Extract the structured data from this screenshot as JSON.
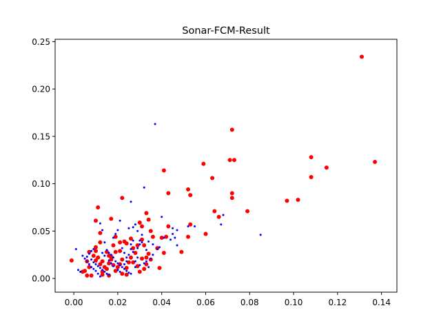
{
  "chart_data": {
    "type": "scatter",
    "title": "Sonar-FCM-Result",
    "xlabel": "",
    "ylabel": "",
    "xlim": [
      -0.0085,
      0.147
    ],
    "ylim": [
      -0.0145,
      0.2525
    ],
    "xticks": [
      0.0,
      0.02,
      0.04,
      0.06,
      0.08,
      0.1,
      0.12,
      0.14
    ],
    "xtick_labels": [
      "0.00",
      "0.02",
      "0.04",
      "0.06",
      "0.08",
      "0.10",
      "0.12",
      "0.14"
    ],
    "yticks": [
      0.0,
      0.05,
      0.1,
      0.15,
      0.2,
      0.25
    ],
    "ytick_labels": [
      "0.00",
      "0.05",
      "0.10",
      "0.15",
      "0.20",
      "0.25"
    ],
    "grid": false,
    "legend": "none",
    "series": [
      {
        "color": "#ff0000",
        "marker": "circle",
        "points": [
          [
            0.131,
            0.234
          ],
          [
            0.137,
            0.123
          ],
          [
            0.115,
            0.117
          ],
          [
            0.108,
            0.128
          ],
          [
            0.108,
            0.107
          ],
          [
            0.102,
            0.083
          ],
          [
            0.097,
            0.082
          ],
          [
            0.073,
            0.125
          ],
          [
            0.071,
            0.125
          ],
          [
            0.072,
            0.157
          ],
          [
            0.072,
            0.09
          ],
          [
            0.072,
            0.085
          ],
          [
            0.079,
            0.071
          ],
          [
            0.066,
            0.065
          ],
          [
            0.064,
            0.071
          ],
          [
            0.059,
            0.121
          ],
          [
            0.063,
            0.106
          ],
          [
            0.06,
            0.047
          ],
          [
            0.052,
            0.094
          ],
          [
            0.053,
            0.088
          ],
          [
            0.053,
            0.057
          ],
          [
            0.052,
            0.044
          ],
          [
            0.049,
            0.028
          ],
          [
            0.041,
            0.114
          ],
          [
            0.043,
            0.09
          ],
          [
            0.043,
            0.055
          ],
          [
            0.042,
            0.044
          ],
          [
            0.04,
            0.043
          ],
          [
            0.038,
            0.032
          ],
          [
            0.041,
            0.027
          ],
          [
            0.039,
            0.011
          ],
          [
            0.035,
            0.05
          ],
          [
            0.036,
            0.044
          ],
          [
            0.034,
            0.062
          ],
          [
            0.033,
            0.069
          ],
          [
            0.031,
            0.055
          ],
          [
            0.03,
            0.059
          ],
          [
            0.031,
            0.041
          ],
          [
            0.032,
            0.035
          ],
          [
            0.029,
            0.035
          ],
          [
            0.028,
            0.027
          ],
          [
            0.027,
            0.032
          ],
          [
            0.026,
            0.042
          ],
          [
            0.024,
            0.037
          ],
          [
            0.023,
            0.039
          ],
          [
            0.022,
            0.085
          ],
          [
            0.018,
            0.035
          ],
          [
            0.017,
            0.063
          ],
          [
            0.019,
            0.044
          ],
          [
            0.021,
            0.029
          ],
          [
            0.022,
            0.02
          ],
          [
            0.021,
            0.015
          ],
          [
            0.02,
            0.012
          ],
          [
            0.019,
            0.008
          ],
          [
            0.024,
            0.011
          ],
          [
            0.025,
            0.017
          ],
          [
            0.026,
            0.022
          ],
          [
            0.027,
            0.017
          ],
          [
            0.029,
            0.013
          ],
          [
            0.031,
            0.021
          ],
          [
            0.033,
            0.022
          ],
          [
            0.033,
            0.015
          ],
          [
            0.032,
            0.01
          ],
          [
            0.034,
            0.026
          ],
          [
            0.035,
            0.02
          ],
          [
            0.03,
            0.007
          ],
          [
            0.024,
            0.004
          ],
          [
            0.022,
            0.005
          ],
          [
            0.016,
            0.003
          ],
          [
            0.011,
            0.075
          ],
          [
            0.01,
            0.061
          ],
          [
            0.012,
            0.048
          ],
          [
            0.012,
            0.038
          ],
          [
            0.01,
            0.033
          ],
          [
            0.01,
            0.029
          ],
          [
            0.009,
            0.024
          ],
          [
            0.01,
            0.019
          ],
          [
            0.011,
            0.022
          ],
          [
            0.012,
            0.015
          ],
          [
            0.013,
            0.018
          ],
          [
            0.014,
            0.012
          ],
          [
            0.013,
            0.007
          ],
          [
            0.015,
            0.028
          ],
          [
            0.016,
            0.024
          ],
          [
            0.017,
            0.02
          ],
          [
            0.016,
            0.016
          ],
          [
            0.018,
            0.014
          ],
          [
            0.007,
            0.028
          ],
          [
            0.006,
            0.018
          ],
          [
            0.007,
            0.012
          ],
          [
            0.005,
            0.008
          ],
          [
            0.006,
            0.003
          ],
          [
            0.008,
            0.003
          ],
          [
            -0.001,
            0.019
          ],
          [
            0.004,
            0.007
          ],
          [
            0.013,
            0.004
          ],
          [
            0.015,
            0.01
          ],
          [
            0.017,
            0.023
          ],
          [
            0.019,
            0.028
          ],
          [
            0.021,
            0.038
          ]
        ]
      },
      {
        "color": "#0000ff",
        "marker": "dot",
        "points": [
          [
            0.037,
            0.163
          ],
          [
            0.032,
            0.096
          ],
          [
            0.026,
            0.081
          ],
          [
            0.047,
            0.051
          ],
          [
            0.045,
            0.053
          ],
          [
            0.052,
            0.055
          ],
          [
            0.055,
            0.055
          ],
          [
            0.067,
            0.057
          ],
          [
            0.068,
            0.067
          ],
          [
            0.085,
            0.046
          ],
          [
            0.04,
            0.065
          ],
          [
            0.041,
            0.043
          ],
          [
            0.045,
            0.047
          ],
          [
            0.046,
            0.043
          ],
          [
            0.044,
            0.041
          ],
          [
            0.047,
            0.035
          ],
          [
            0.039,
            0.033
          ],
          [
            0.038,
            0.031
          ],
          [
            0.036,
            0.036
          ],
          [
            0.034,
            0.039
          ],
          [
            0.031,
            0.046
          ],
          [
            0.029,
            0.05
          ],
          [
            0.028,
            0.057
          ],
          [
            0.027,
            0.054
          ],
          [
            0.025,
            0.053
          ],
          [
            0.03,
            0.04
          ],
          [
            0.031,
            0.038
          ],
          [
            0.029,
            0.032
          ],
          [
            0.027,
            0.028
          ],
          [
            0.026,
            0.031
          ],
          [
            0.025,
            0.025
          ],
          [
            0.024,
            0.022
          ],
          [
            0.023,
            0.027
          ],
          [
            0.022,
            0.032
          ],
          [
            0.021,
            0.061
          ],
          [
            0.02,
            0.051
          ],
          [
            0.019,
            0.047
          ],
          [
            0.018,
            0.043
          ],
          [
            0.014,
            0.038
          ],
          [
            0.013,
            0.051
          ],
          [
            0.012,
            0.058
          ],
          [
            0.015,
            0.03
          ],
          [
            0.016,
            0.027
          ],
          [
            0.017,
            0.025
          ],
          [
            0.018,
            0.022
          ],
          [
            0.019,
            0.018
          ],
          [
            0.02,
            0.016
          ],
          [
            0.021,
            0.014
          ],
          [
            0.022,
            0.012
          ],
          [
            0.023,
            0.01
          ],
          [
            0.024,
            0.008
          ],
          [
            0.025,
            0.006
          ],
          [
            0.026,
            0.005
          ],
          [
            0.028,
            0.012
          ],
          [
            0.03,
            0.014
          ],
          [
            0.032,
            0.016
          ],
          [
            0.033,
            0.018
          ],
          [
            0.034,
            0.012
          ],
          [
            0.035,
            0.021
          ],
          [
            0.036,
            0.025
          ],
          [
            0.029,
            0.022
          ],
          [
            0.028,
            0.018
          ],
          [
            0.009,
            0.031
          ],
          [
            0.008,
            0.029
          ],
          [
            0.007,
            0.026
          ],
          [
            0.006,
            0.023
          ],
          [
            0.008,
            0.02
          ],
          [
            0.009,
            0.017
          ],
          [
            0.01,
            0.015
          ],
          [
            0.011,
            0.013
          ],
          [
            0.012,
            0.011
          ],
          [
            0.013,
            0.009
          ],
          [
            0.014,
            0.007
          ],
          [
            0.015,
            0.005
          ],
          [
            0.016,
            0.004
          ],
          [
            0.012,
            0.002
          ],
          [
            0.011,
            0.005
          ],
          [
            0.01,
            0.008
          ],
          [
            0.009,
            0.01
          ],
          [
            0.008,
            0.012
          ],
          [
            0.007,
            0.015
          ],
          [
            0.006,
            0.018
          ],
          [
            0.005,
            0.021
          ],
          [
            0.004,
            0.024
          ],
          [
            0.003,
            0.007
          ],
          [
            0.002,
            0.009
          ],
          [
            0.001,
            0.031
          ],
          [
            0.013,
            0.027
          ],
          [
            0.014,
            0.024
          ],
          [
            0.016,
            0.019
          ],
          [
            0.017,
            0.016
          ],
          [
            0.018,
            0.013
          ],
          [
            0.02,
            0.009
          ],
          [
            0.021,
            0.007
          ],
          [
            0.023,
            0.015
          ],
          [
            0.024,
            0.018
          ],
          [
            0.026,
            0.036
          ],
          [
            0.027,
            0.04
          ],
          [
            0.03,
            0.036
          ],
          [
            0.033,
            0.03
          ]
        ]
      }
    ]
  }
}
